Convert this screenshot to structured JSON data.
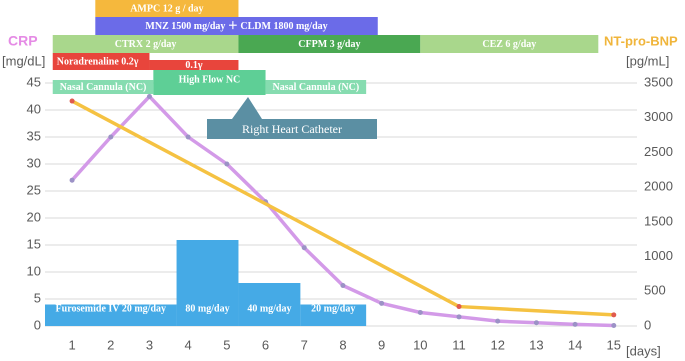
{
  "chart_data": {
    "type": "line",
    "y_label": "CRP",
    "y_unit": "[mg/dL]",
    "y2_label": "NT-pro-BNP",
    "y2_unit": "[pg/mL]",
    "x_unit": "[days]",
    "xlim": [
      0.3,
      15.6
    ],
    "xticks": [
      1,
      2,
      3,
      4,
      5,
      6,
      7,
      8,
      9,
      10,
      11,
      12,
      13,
      14,
      15
    ],
    "ylim": [
      0,
      45
    ],
    "yticks": [
      0,
      5,
      10,
      15,
      20,
      25,
      30,
      35,
      40,
      45
    ],
    "y2lim": [
      0,
      3500
    ],
    "y2ticks": [
      0,
      500,
      1000,
      1500,
      2000,
      2500,
      3000,
      3500
    ],
    "grid": true,
    "series": [
      {
        "color": "#d39ae8",
        "marker_color": "#9c92c6",
        "x": [
          1,
          2,
          3,
          4,
          5,
          6,
          7,
          8,
          9,
          10,
          11,
          12,
          13,
          14,
          15
        ],
        "values": [
          27,
          35,
          42.5,
          35,
          30,
          23,
          14.5,
          7.5,
          4.2,
          2.5,
          1.7,
          0.9,
          0.6,
          0.3,
          0.1
        ]
      },
      {
        "color": "#f5c242",
        "marker_color": "#e05a4e",
        "axis": "y2",
        "x": [
          1,
          11,
          15
        ],
        "values": [
          3240,
          280,
          160
        ]
      }
    ],
    "treatments": [
      {
        "label": "AMPC 12 g / day",
        "start": 1.6,
        "end": 5.3,
        "color": "#f5b83d"
      },
      {
        "label": "MNZ 1500 mg/day ＋ CLDM 1800 mg/day",
        "start": 1.6,
        "end": 8.9,
        "color": "#6b6be8"
      },
      {
        "label": "CTRX 2 g/day",
        "start": 0.5,
        "end": 5.3,
        "color": "#a9d78c"
      },
      {
        "label": "CFPM 3 g/day",
        "start": 5.3,
        "end": 10,
        "color": "#4aa852"
      },
      {
        "label": "CEZ 6 g/day",
        "start": 10,
        "end": 14.6,
        "color": "#a9d78c"
      },
      {
        "label": "Noradrenaline 0.2γ",
        "start": 0.5,
        "end": 3,
        "color": "#e8453c"
      },
      {
        "label": "0.1γ",
        "start": 3,
        "end": 5.3,
        "color": "#e8453c"
      },
      {
        "label": "Nasal Cannula (NC)",
        "start": 0.5,
        "end": 3.1,
        "color": "#86dcb0"
      },
      {
        "label": "High Flow NC",
        "start": 3.1,
        "end": 6,
        "color": "#5ecf96"
      },
      {
        "label": "Nasal Cannula (NC)",
        "start": 6,
        "end": 8.6,
        "color": "#86dcb0"
      }
    ],
    "furosemide": {
      "color": "#45aae6",
      "segments": [
        {
          "label": "Furosemide  IV 20 mg/day",
          "dose": 20,
          "start": 0.3,
          "end": 3.7
        },
        {
          "label": "80 mg/day",
          "dose": 80,
          "start": 3.7,
          "end": 5.3
        },
        {
          "label": "40 mg/day",
          "dose": 40,
          "start": 5.3,
          "end": 6.9
        },
        {
          "label": "20 mg/day",
          "dose": 20,
          "start": 6.9,
          "end": 8.6
        }
      ]
    },
    "annotation": "Right Heart Catheter"
  }
}
